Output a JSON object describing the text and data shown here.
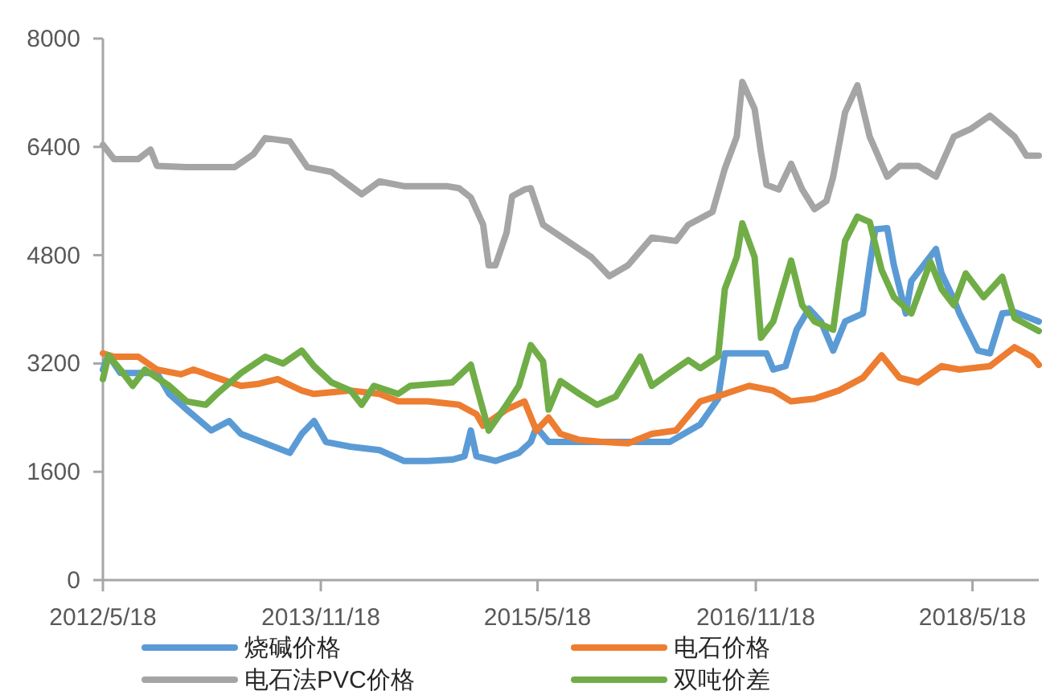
{
  "chart_data": {
    "type": "line",
    "xlim": [
      "2012-05-18",
      "2018-11-01"
    ],
    "xticks": [
      {
        "value": "2012-05-18",
        "label": "2012/5/18"
      },
      {
        "value": "2013-11-18",
        "label": "2013/11/18"
      },
      {
        "value": "2015-05-18",
        "label": "2015/5/18"
      },
      {
        "value": "2016-11-18",
        "label": "2016/11/18"
      },
      {
        "value": "2018-05-18",
        "label": "2018/5/18"
      }
    ],
    "ylim": [
      0,
      8000
    ],
    "yticks": [
      0,
      1600,
      3200,
      4800,
      6400,
      8000
    ],
    "grid": false,
    "legend": "bottom",
    "marker": "none",
    "line_style": "solid",
    "series": [
      {
        "name": "烧碱价格",
        "color": "#5b9bd5",
        "x": [
          "2012-05-18",
          "2012-06-01",
          "2012-07-01",
          "2012-10-01",
          "2012-11-01",
          "2012-12-15",
          "2013-02-15",
          "2013-04-01",
          "2013-05-01",
          "2013-07-01",
          "2013-09-01",
          "2013-10-01",
          "2013-11-01",
          "2013-12-01",
          "2014-02-01",
          "2014-04-15",
          "2014-06-15",
          "2014-08-15",
          "2014-10-15",
          "2014-11-15",
          "2014-12-01",
          "2014-12-15",
          "2015-02-01",
          "2015-04-01",
          "2015-05-01",
          "2015-05-15",
          "2015-06-15",
          "2015-08-15",
          "2015-12-01",
          "2016-04-15",
          "2016-07-01",
          "2016-08-15",
          "2016-09-01",
          "2016-12-15",
          "2017-01-01",
          "2017-02-01",
          "2017-03-01",
          "2017-04-01",
          "2017-05-01",
          "2017-06-01",
          "2017-07-01",
          "2017-08-15",
          "2017-09-01",
          "2017-09-15",
          "2017-10-15",
          "2017-11-01",
          "2017-12-01",
          "2017-12-15",
          "2018-02-15",
          "2018-03-01",
          "2018-04-01",
          "2018-04-15",
          "2018-06-01",
          "2018-07-01",
          "2018-08-01",
          "2018-09-01",
          "2018-11-01"
        ],
        "values": [
          3110,
          3320,
          3060,
          3060,
          2750,
          2520,
          2210,
          2350,
          2160,
          2020,
          1880,
          2160,
          2350,
          2040,
          1970,
          1920,
          1760,
          1760,
          1780,
          1830,
          2210,
          1830,
          1760,
          1880,
          2040,
          2260,
          2040,
          2040,
          2040,
          2040,
          2300,
          2680,
          3350,
          3350,
          3110,
          3160,
          3700,
          4010,
          3820,
          3390,
          3820,
          3940,
          4650,
          5180,
          5200,
          4650,
          3940,
          4420,
          4890,
          4530,
          4150,
          3940,
          3390,
          3350,
          3940,
          3960,
          3820
        ]
      },
      {
        "name": "电石价格",
        "color": "#ed7d31",
        "x": [
          "2012-05-18",
          "2012-06-15",
          "2012-08-15",
          "2012-10-01",
          "2012-12-01",
          "2013-01-01",
          "2013-03-01",
          "2013-05-01",
          "2013-06-15",
          "2013-08-01",
          "2013-10-01",
          "2013-11-01",
          "2014-02-01",
          "2014-04-15",
          "2014-06-01",
          "2014-08-15",
          "2014-11-01",
          "2014-12-15",
          "2015-01-01",
          "2015-03-01",
          "2015-04-15",
          "2015-05-15",
          "2015-06-15",
          "2015-07-15",
          "2015-09-01",
          "2015-11-01",
          "2016-01-01",
          "2016-03-01",
          "2016-05-01",
          "2016-07-01",
          "2016-09-01",
          "2016-11-01",
          "2017-01-01",
          "2017-02-15",
          "2017-04-15",
          "2017-06-15",
          "2017-08-15",
          "2017-10-01",
          "2017-11-15",
          "2018-01-01",
          "2018-03-01",
          "2018-04-15",
          "2018-07-01",
          "2018-09-01",
          "2018-10-15",
          "2018-11-01"
        ],
        "values": [
          3350,
          3300,
          3300,
          3110,
          3040,
          3110,
          2990,
          2870,
          2900,
          2970,
          2800,
          2750,
          2800,
          2750,
          2640,
          2640,
          2590,
          2450,
          2280,
          2520,
          2640,
          2210,
          2400,
          2160,
          2070,
          2040,
          2020,
          2160,
          2210,
          2640,
          2750,
          2870,
          2800,
          2640,
          2680,
          2800,
          2990,
          3320,
          2990,
          2920,
          3160,
          3110,
          3160,
          3440,
          3300,
          3180
        ]
      },
      {
        "name": "电石法PVC价格",
        "color": "#a5a5a5",
        "x": [
          "2012-05-18",
          "2012-06-15",
          "2012-08-15",
          "2012-09-15",
          "2012-10-01",
          "2012-12-15",
          "2013-03-01",
          "2013-04-15",
          "2013-06-01",
          "2013-07-01",
          "2013-09-01",
          "2013-10-15",
          "2013-12-15",
          "2014-03-01",
          "2014-04-15",
          "2014-06-15",
          "2014-10-01",
          "2014-11-01",
          "2014-12-01",
          "2015-01-01",
          "2015-01-15",
          "2015-02-01",
          "2015-03-01",
          "2015-03-15",
          "2015-04-15",
          "2015-05-01",
          "2015-06-01",
          "2015-08-01",
          "2015-10-01",
          "2015-11-15",
          "2016-01-01",
          "2016-03-01",
          "2016-05-01",
          "2016-06-01",
          "2016-08-01",
          "2016-09-01",
          "2016-10-01",
          "2016-10-15",
          "2016-11-15",
          "2016-12-01",
          "2016-12-15",
          "2017-01-15",
          "2017-02-15",
          "2017-03-15",
          "2017-04-15",
          "2017-05-15",
          "2017-06-01",
          "2017-07-01",
          "2017-08-01",
          "2017-09-01",
          "2017-10-15",
          "2017-11-15",
          "2018-01-01",
          "2018-02-15",
          "2018-04-01",
          "2018-05-15",
          "2018-07-01",
          "2018-09-01",
          "2018-10-01",
          "2018-11-01"
        ],
        "values": [
          6430,
          6220,
          6220,
          6360,
          6120,
          6100,
          6100,
          6100,
          6290,
          6530,
          6480,
          6100,
          6030,
          5700,
          5890,
          5820,
          5820,
          5790,
          5650,
          5250,
          4650,
          4650,
          5130,
          5670,
          5770,
          5790,
          5250,
          5010,
          4770,
          4490,
          4650,
          5060,
          5010,
          5250,
          5440,
          6080,
          6550,
          7360,
          6960,
          6320,
          5840,
          5770,
          6150,
          5770,
          5480,
          5600,
          5960,
          6910,
          7310,
          6550,
          5960,
          6120,
          6120,
          5960,
          6550,
          6670,
          6860,
          6550,
          6270,
          6270
        ]
      },
      {
        "name": "双吨价差",
        "color": "#70ad47",
        "x": [
          "2012-05-18",
          "2012-06-01",
          "2012-07-01",
          "2012-08-01",
          "2012-09-01",
          "2012-10-01",
          "2012-11-01",
          "2012-12-15",
          "2013-02-01",
          "2013-03-01",
          "2013-05-01",
          "2013-07-01",
          "2013-08-15",
          "2013-10-01",
          "2013-11-01",
          "2013-12-15",
          "2014-02-01",
          "2014-03-01",
          "2014-04-01",
          "2014-06-01",
          "2014-07-01",
          "2014-10-15",
          "2014-12-01",
          "2014-12-15",
          "2015-01-15",
          "2015-03-01",
          "2015-04-01",
          "2015-05-01",
          "2015-06-01",
          "2015-06-15",
          "2015-07-15",
          "2015-09-01",
          "2015-10-15",
          "2015-12-01",
          "2016-02-01",
          "2016-03-01",
          "2016-04-15",
          "2016-06-01",
          "2016-07-01",
          "2016-08-15",
          "2016-09-01",
          "2016-10-01",
          "2016-10-15",
          "2016-11-15",
          "2016-12-01",
          "2017-01-01",
          "2017-02-15",
          "2017-03-15",
          "2017-04-15",
          "2017-06-01",
          "2017-07-01",
          "2017-08-01",
          "2017-09-01",
          "2017-10-01",
          "2017-11-01",
          "2017-12-15",
          "2018-02-01",
          "2018-03-01",
          "2018-04-01",
          "2018-05-01",
          "2018-06-15",
          "2018-08-01",
          "2018-09-01",
          "2018-11-01"
        ],
        "values": [
          2970,
          3320,
          3110,
          2870,
          3110,
          2990,
          2870,
          2640,
          2590,
          2750,
          3060,
          3300,
          3200,
          3390,
          3160,
          2920,
          2800,
          2590,
          2870,
          2750,
          2870,
          2920,
          3180,
          2870,
          2210,
          2590,
          2870,
          3470,
          3230,
          2520,
          2940,
          2750,
          2590,
          2710,
          3300,
          2870,
          3060,
          3250,
          3130,
          3300,
          4300,
          4770,
          5270,
          4770,
          3580,
          3820,
          4720,
          4060,
          3820,
          3700,
          5010,
          5370,
          5290,
          4580,
          4180,
          3940,
          4700,
          4300,
          4060,
          4530,
          4180,
          4480,
          3870,
          3680
        ]
      }
    ]
  }
}
